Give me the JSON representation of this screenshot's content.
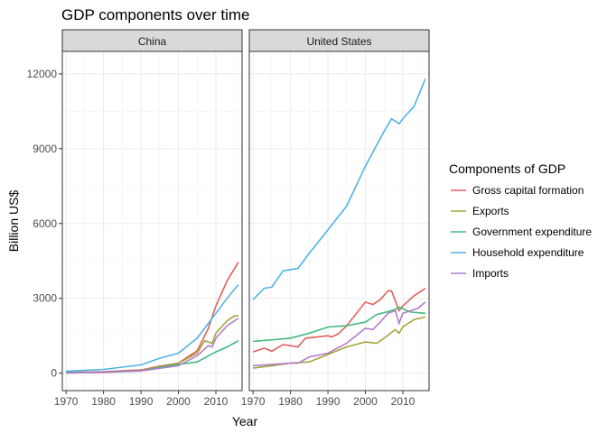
{
  "chart_data": {
    "type": "line",
    "title": "GDP components over time",
    "xlabel": "Year",
    "ylabel": "Billion US$",
    "xlim": [
      1969,
      2017
    ],
    "ylim": [
      -700,
      12900
    ],
    "xticks": [
      1970,
      1980,
      1990,
      2000,
      2010
    ],
    "yticks": [
      0,
      3000,
      6000,
      9000,
      12000
    ],
    "grid": true,
    "legend": {
      "title": "Components of GDP",
      "position": "right"
    },
    "series_meta": [
      {
        "name": "Gross capital formation",
        "color": "#e0605f"
      },
      {
        "name": "Exports",
        "color": "#a3a53a"
      },
      {
        "name": "Government expenditure",
        "color": "#3dbb7c"
      },
      {
        "name": "Household expenditure",
        "color": "#4fb3e3"
      },
      {
        "name": "Imports",
        "color": "#b27ccb"
      }
    ],
    "facets": [
      {
        "label": "China",
        "series": [
          {
            "name": "Gross capital formation",
            "x": [
              1970,
              1980,
              1990,
              1995,
              2000,
              2005,
              2008,
              2010,
              2013,
              2016
            ],
            "y": [
              30,
              60,
              130,
              280,
              400,
              900,
              1800,
              2700,
              3700,
              4450
            ]
          },
          {
            "name": "Exports",
            "x": [
              1970,
              1980,
              1990,
              1995,
              2000,
              2005,
              2007,
              2009,
              2010,
              2013,
              2015,
              2016
            ],
            "y": [
              5,
              30,
              100,
              250,
              400,
              800,
              1300,
              1200,
              1600,
              2100,
              2300,
              2300
            ]
          },
          {
            "name": "Government expenditure",
            "x": [
              1970,
              1980,
              1990,
              2000,
              2005,
              2010,
              2013,
              2016
            ],
            "y": [
              20,
              40,
              100,
              350,
              450,
              850,
              1050,
              1300
            ]
          },
          {
            "name": "Household expenditure",
            "x": [
              1970,
              1980,
              1990,
              1995,
              2000,
              2005,
              2008,
              2010,
              2013,
              2016
            ],
            "y": [
              80,
              150,
              330,
              600,
              800,
              1400,
              2000,
              2400,
              3000,
              3550
            ]
          },
          {
            "name": "Imports",
            "x": [
              1970,
              1980,
              1990,
              2000,
              2005,
              2008,
              2009,
              2010,
              2013,
              2015,
              2016
            ],
            "y": [
              5,
              30,
              90,
              300,
              700,
              1100,
              1050,
              1400,
              1900,
              2100,
              2200
            ]
          }
        ]
      },
      {
        "label": "United States",
        "series": [
          {
            "name": "Gross capital formation",
            "x": [
              1970,
              1973,
              1975,
              1978,
              1980,
              1982,
              1984,
              1990,
              1991,
              1993,
              1995,
              2000,
              2002,
              2004,
              2006,
              2007,
              2009,
              2010,
              2013,
              2016
            ],
            "y": [
              850,
              1000,
              880,
              1150,
              1100,
              1050,
              1400,
              1500,
              1450,
              1600,
              1900,
              2850,
              2750,
              2950,
              3300,
              3300,
              2500,
              2700,
              3100,
              3400
            ]
          },
          {
            "name": "Exports",
            "x": [
              1970,
              1975,
              1980,
              1985,
              1990,
              1995,
              2000,
              2003,
              2005,
              2008,
              2009,
              2010,
              2013,
              2016
            ],
            "y": [
              200,
              300,
              400,
              450,
              750,
              1050,
              1250,
              1200,
              1400,
              1750,
              1600,
              1850,
              2150,
              2250
            ]
          },
          {
            "name": "Government expenditure",
            "x": [
              1970,
              1980,
              1985,
              1990,
              1995,
              2000,
              2003,
              2008,
              2009,
              2012,
              2016
            ],
            "y": [
              1270,
              1400,
              1600,
              1850,
              1900,
              2050,
              2350,
              2550,
              2650,
              2450,
              2400
            ]
          },
          {
            "name": "Household expenditure",
            "x": [
              1970,
              1973,
              1975,
              1978,
              1980,
              1982,
              1985,
              1990,
              1995,
              2000,
              2005,
              2007,
              2009,
              2010,
              2013,
              2016
            ],
            "y": [
              2950,
              3400,
              3450,
              4100,
              4150,
              4200,
              4800,
              5750,
              6700,
              8300,
              9700,
              10200,
              10000,
              10200,
              10700,
              11800
            ]
          },
          {
            "name": "Imports",
            "x": [
              1970,
              1980,
              1982,
              1985,
              1990,
              1995,
              2000,
              2002,
              2004,
              2006,
              2008,
              2009,
              2010,
              2014,
              2016
            ],
            "y": [
              300,
              400,
              400,
              650,
              800,
              1200,
              1800,
              1750,
              2050,
              2400,
              2500,
              2000,
              2400,
              2600,
              2850
            ]
          }
        ]
      }
    ]
  }
}
